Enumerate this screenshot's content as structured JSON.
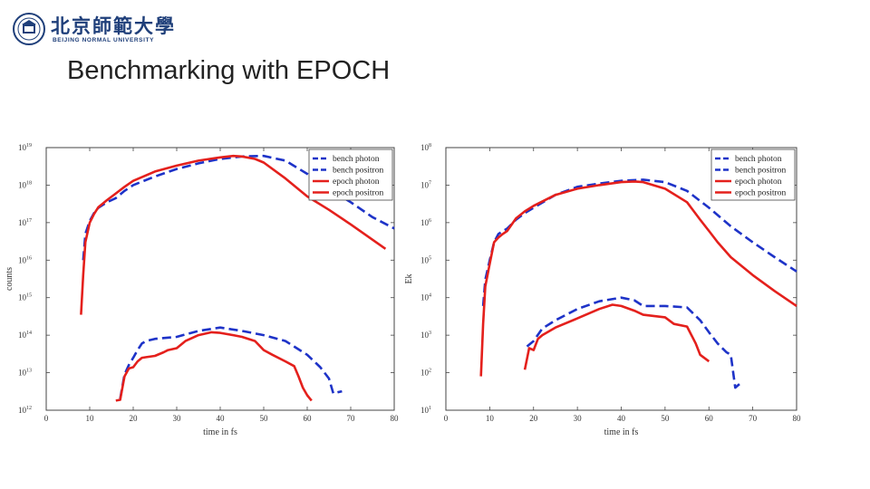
{
  "header": {
    "logo_cn": "北京師範大學",
    "logo_en": "BEIJING NORMAL UNIVERSITY",
    "logo_icon": "university-seal-icon",
    "title": "Benchmarking with EPOCH"
  },
  "colors": {
    "bench": "#1e33c8",
    "epoch": "#e4201c",
    "axis": "#444444"
  },
  "chart_data": [
    {
      "type": "line",
      "xlabel": "time in fs",
      "ylabel": "counts",
      "xlim": [
        0,
        80
      ],
      "ylim": [
        1000000000000.0,
        1e+19
      ],
      "yscale": "log",
      "x_ticks": [
        0,
        10,
        20,
        30,
        40,
        50,
        60,
        70,
        80
      ],
      "y_tick_exponents": [
        12,
        13,
        14,
        15,
        16,
        17,
        18,
        19
      ],
      "legend_position": "top-right",
      "grid": false,
      "series": [
        {
          "name": "bench photon",
          "style": "dashed",
          "color": "#1e33c8",
          "x": [
            8.5,
            9,
            10,
            11,
            12,
            14,
            16,
            18,
            20,
            25,
            30,
            35,
            40,
            45,
            50,
            55,
            60,
            65,
            70,
            75,
            80
          ],
          "y": [
            1e+16,
            5e+16,
            1.1e+17,
            1.8e+17,
            2.5e+17,
            3.5e+17,
            4.5e+17,
            7e+17,
            1e+18,
            1.7e+18,
            2.7e+18,
            3.8e+18,
            5e+18,
            5.8e+18,
            6e+18,
            4.5e+18,
            2e+18,
            8e+17,
            3.5e+17,
            1.4e+17,
            7e+16
          ]
        },
        {
          "name": "bench positron",
          "style": "dashed",
          "color": "#1e33c8",
          "x": [
            17,
            18,
            19,
            20,
            21,
            22,
            23,
            25,
            30,
            35,
            40,
            45,
            50,
            55,
            60,
            63,
            65,
            66,
            67,
            68
          ],
          "y": [
            2000000000000.0,
            9000000000000.0,
            16000000000000.0,
            25000000000000.0,
            40000000000000.0,
            60000000000000.0,
            70000000000000.0,
            80000000000000.0,
            90000000000000.0,
            130000000000000.0,
            160000000000000.0,
            130000000000000.0,
            100000000000000.0,
            70000000000000.0,
            30000000000000.0,
            14000000000000.0,
            7000000000000.0,
            2800000000000.0,
            3000000000000.0,
            3200000000000.0
          ]
        },
        {
          "name": "epoch photon",
          "style": "solid",
          "color": "#e4201c",
          "x": [
            8,
            8.5,
            9,
            10,
            11,
            12,
            14,
            16,
            18,
            20,
            25,
            30,
            35,
            40,
            43,
            45,
            48,
            50,
            55,
            60,
            65,
            70,
            75,
            78
          ],
          "y": [
            350000000000000.0,
            4000000000000000.0,
            3e+16,
            1e+17,
            1.7e+17,
            2.6e+17,
            4e+17,
            6e+17,
            9e+17,
            1.3e+18,
            2.3e+18,
            3.3e+18,
            4.5e+18,
            5.5e+18,
            6e+18,
            5.8e+18,
            5e+18,
            4e+18,
            1.5e+18,
            5e+17,
            2.2e+17,
            9e+16,
            3.5e+16,
            2e+16
          ]
        },
        {
          "name": "epoch positron",
          "style": "solid",
          "color": "#e4201c",
          "x": [
            16,
            17,
            18,
            19,
            20,
            21,
            22,
            23,
            25,
            27,
            28,
            30,
            32,
            35,
            38,
            40,
            43,
            45,
            48,
            50,
            52,
            55,
            57,
            58,
            59,
            60,
            61
          ],
          "y": [
            1800000000000.0,
            1900000000000.0,
            8000000000000.0,
            13000000000000.0,
            14000000000000.0,
            20000000000000.0,
            25000000000000.0,
            26000000000000.0,
            28000000000000.0,
            35000000000000.0,
            40000000000000.0,
            45000000000000.0,
            70000000000000.0,
            100000000000000.0,
            120000000000000.0,
            115000000000000.0,
            100000000000000.0,
            90000000000000.0,
            70000000000000.0,
            40000000000000.0,
            30000000000000.0,
            20000000000000.0,
            15000000000000.0,
            8000000000000.0,
            4000000000000.0,
            2500000000000.0,
            1800000000000.0
          ]
        }
      ]
    },
    {
      "type": "line",
      "xlabel": "time in fs",
      "ylabel": "Ek",
      "xlim": [
        0,
        80
      ],
      "ylim": [
        10,
        100000000.0
      ],
      "yscale": "log",
      "x_ticks": [
        0,
        10,
        20,
        30,
        40,
        50,
        60,
        70,
        80
      ],
      "y_tick_exponents": [
        1,
        2,
        3,
        4,
        5,
        6,
        7,
        8
      ],
      "legend_position": "top-right",
      "grid": false,
      "series": [
        {
          "name": "bench photon",
          "style": "dashed",
          "color": "#1e33c8",
          "x": [
            8.5,
            9,
            10,
            11,
            12,
            14,
            16,
            18,
            20,
            25,
            30,
            35,
            40,
            45,
            50,
            55,
            60,
            65,
            70,
            75,
            80
          ],
          "y": [
            6000,
            30000,
            100000,
            300000,
            500000,
            700000,
            1200000,
            1800000,
            2500000,
            5500000,
            9000000,
            11000000,
            13000000,
            14000000,
            12000000,
            7000000,
            2500000,
            800000,
            300000,
            120000,
            50000
          ]
        },
        {
          "name": "bench positron",
          "style": "dashed",
          "color": "#1e33c8",
          "x": [
            18.5,
            20,
            22,
            25,
            30,
            35,
            40,
            43,
            45,
            50,
            55,
            58,
            60,
            62,
            64,
            65,
            66,
            67
          ],
          "y": [
            500,
            700,
            1500,
            2500,
            5000,
            8000,
            10000,
            8500,
            6000,
            6000,
            5500,
            2500,
            1200,
            600,
            350,
            300,
            40,
            50
          ]
        },
        {
          "name": "epoch photon",
          "style": "solid",
          "color": "#e4201c",
          "x": [
            8,
            8.5,
            9,
            10,
            11,
            12,
            13,
            14,
            16,
            18,
            20,
            25,
            30,
            35,
            40,
            43,
            45,
            50,
            55,
            58,
            60,
            62,
            65,
            70,
            75,
            80
          ],
          "y": [
            80,
            2000,
            20000,
            80000,
            300000,
            400000,
            500000,
            600000,
            1300000,
            2000000,
            2800000,
            5500000,
            8000000,
            10000000,
            12000000,
            12500000,
            12000000,
            8000000,
            3500000,
            1200000,
            600000,
            300000,
            120000,
            40000,
            15000,
            6000
          ]
        },
        {
          "name": "epoch positron",
          "style": "solid",
          "color": "#e4201c",
          "x": [
            18,
            19,
            20,
            21,
            22,
            25,
            30,
            35,
            38,
            40,
            43,
            45,
            50,
            52,
            55,
            57,
            58,
            60
          ],
          "y": [
            120,
            450,
            400,
            800,
            1000,
            1600,
            2800,
            5000,
            6500,
            6000,
            4500,
            3500,
            3000,
            2000,
            1700,
            600,
            300,
            200
          ]
        }
      ]
    }
  ]
}
